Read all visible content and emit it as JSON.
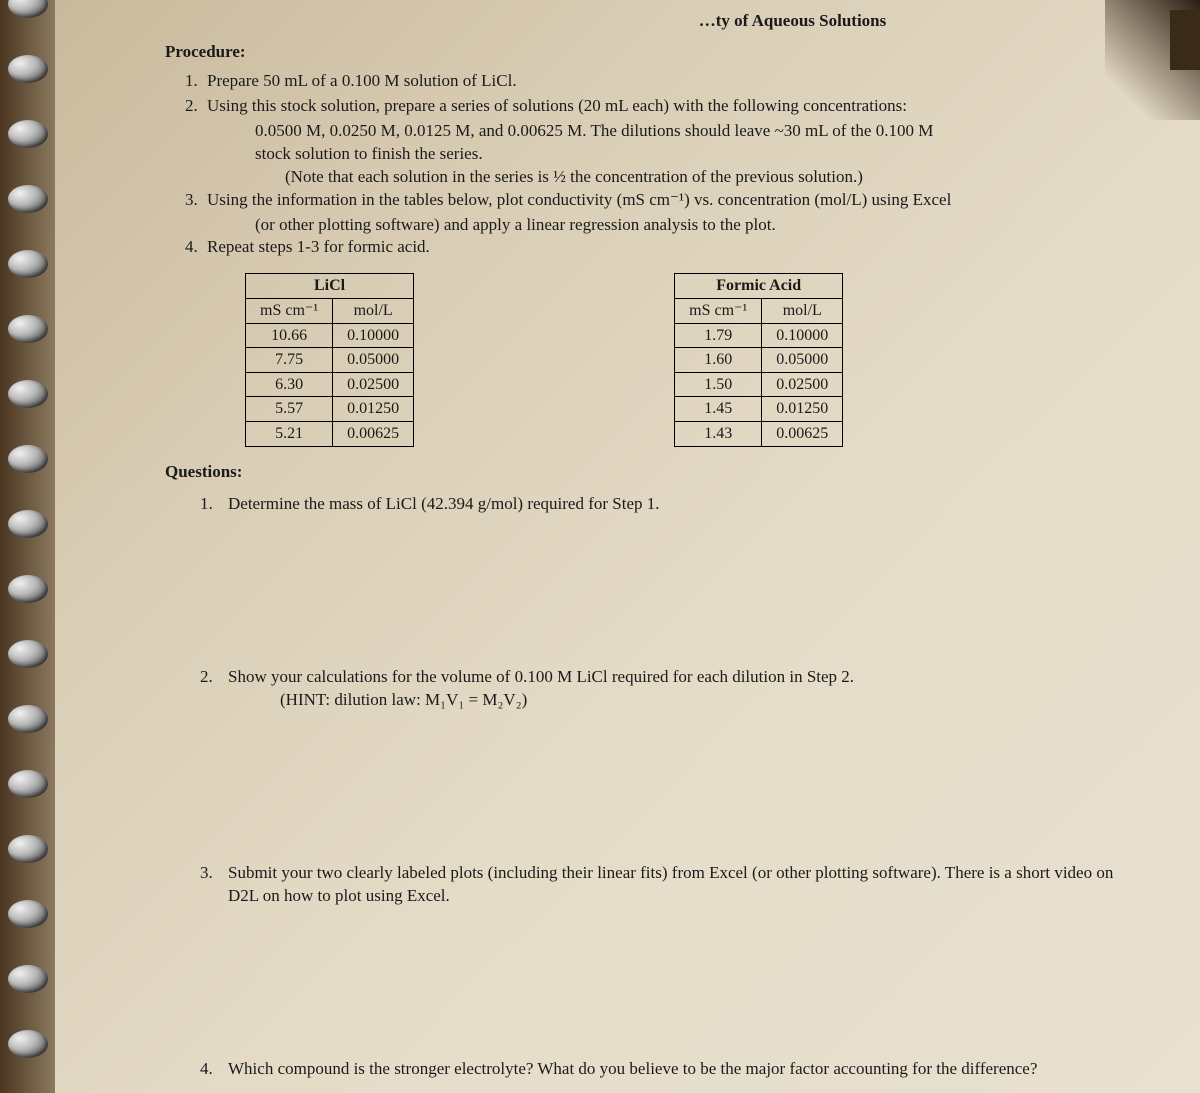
{
  "header_fragment": "…ty of Aqueous Solutions",
  "procedure": {
    "heading": "Procedure:",
    "items": [
      {
        "num": "1.",
        "text": "Prepare 50 mL of a 0.100 M solution of LiCl."
      },
      {
        "num": "2.",
        "text": "Using this stock solution, prepare a series of solutions (20 mL each) with the following concentrations:"
      },
      {
        "num": "3.",
        "text": "Using the information in the tables below, plot conductivity (mS cm⁻¹) vs. concentration (mol/L) using Excel"
      },
      {
        "num": "4.",
        "text": "Repeat steps 1-3 for formic acid."
      }
    ],
    "sub_a": "0.0500 M, 0.0250 M, 0.0125 M, and 0.00625 M.  The dilutions should leave ~30 mL of the 0.100 M",
    "sub_b": "stock solution to finish the series.",
    "note": "(Note that each solution in the series is ½ the concentration of the previous solution.)",
    "sub_c": "(or other plotting software) and apply a linear regression analysis to the plot."
  },
  "tables": {
    "licl": {
      "title": "LiCl",
      "col1": "mS cm⁻¹",
      "col2": "mol/L",
      "rows": [
        [
          "10.66",
          "0.10000"
        ],
        [
          "7.75",
          "0.05000"
        ],
        [
          "6.30",
          "0.02500"
        ],
        [
          "5.57",
          "0.01250"
        ],
        [
          "5.21",
          "0.00625"
        ]
      ]
    },
    "formic": {
      "title": "Formic Acid",
      "col1": "mS cm⁻¹",
      "col2": "mol/L",
      "rows": [
        [
          "1.79",
          "0.10000"
        ],
        [
          "1.60",
          "0.05000"
        ],
        [
          "1.50",
          "0.02500"
        ],
        [
          "1.45",
          "0.01250"
        ],
        [
          "1.43",
          "0.00625"
        ]
      ]
    }
  },
  "questions": {
    "heading": "Questions:",
    "q1": {
      "num": "1.",
      "text": "Determine the mass of LiCl (42.394 g/mol) required for Step 1."
    },
    "q2": {
      "num": "2.",
      "text": "Show your calculations for the volume of 0.100 M LiCl required for each dilution in Step 2.",
      "hint": "(HINT: dilution law: M₁V₁ = M₂V₂)"
    },
    "q3": {
      "num": "3.",
      "text": "Submit your two clearly labeled plots (including their linear fits) from Excel (or other plotting software).  There is a short video on D2L on how to plot using Excel."
    },
    "q4": {
      "num": "4.",
      "text": "Which compound is the stronger electrolyte?  What do you believe to be the major factor  accounting for the difference?"
    }
  },
  "colors": {
    "text": "#1a1a1a",
    "paper_light": "#e8e0d0",
    "paper_dark": "#c8b89a",
    "border": "#000000"
  }
}
